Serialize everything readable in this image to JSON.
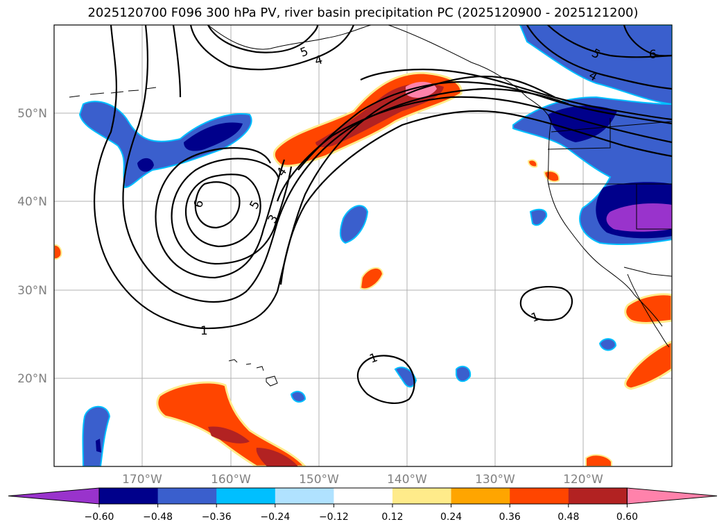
{
  "title": "2025120700 F096 300 hPa PV, river basin precipitation PC (2025120900 - 2025121200)",
  "lat_labels": [
    "50°N",
    "40°N",
    "30°N",
    "20°N"
  ],
  "lon_labels": [
    "170°W",
    "160°W",
    "150°W",
    "140°W",
    "130°W",
    "120°W"
  ],
  "colorbar": {
    "ticks": [
      "−0.60",
      "−0.48",
      "−0.36",
      "−0.24",
      "−0.12",
      "0.12",
      "0.24",
      "0.36",
      "0.48",
      "0.60"
    ],
    "colors": [
      "#9933cc",
      "#00008b",
      "#3a5fcd",
      "#00bfff",
      "#b0e2ff",
      "#ffffff",
      "#ffeb8a",
      "#ffa500",
      "#ff4500",
      "#b22222",
      "#ff82ab"
    ]
  },
  "contour_labels": [
    "6",
    "5",
    "4",
    "3",
    "1",
    "1",
    "1",
    "5",
    "4",
    "6",
    "5",
    "4"
  ]
}
